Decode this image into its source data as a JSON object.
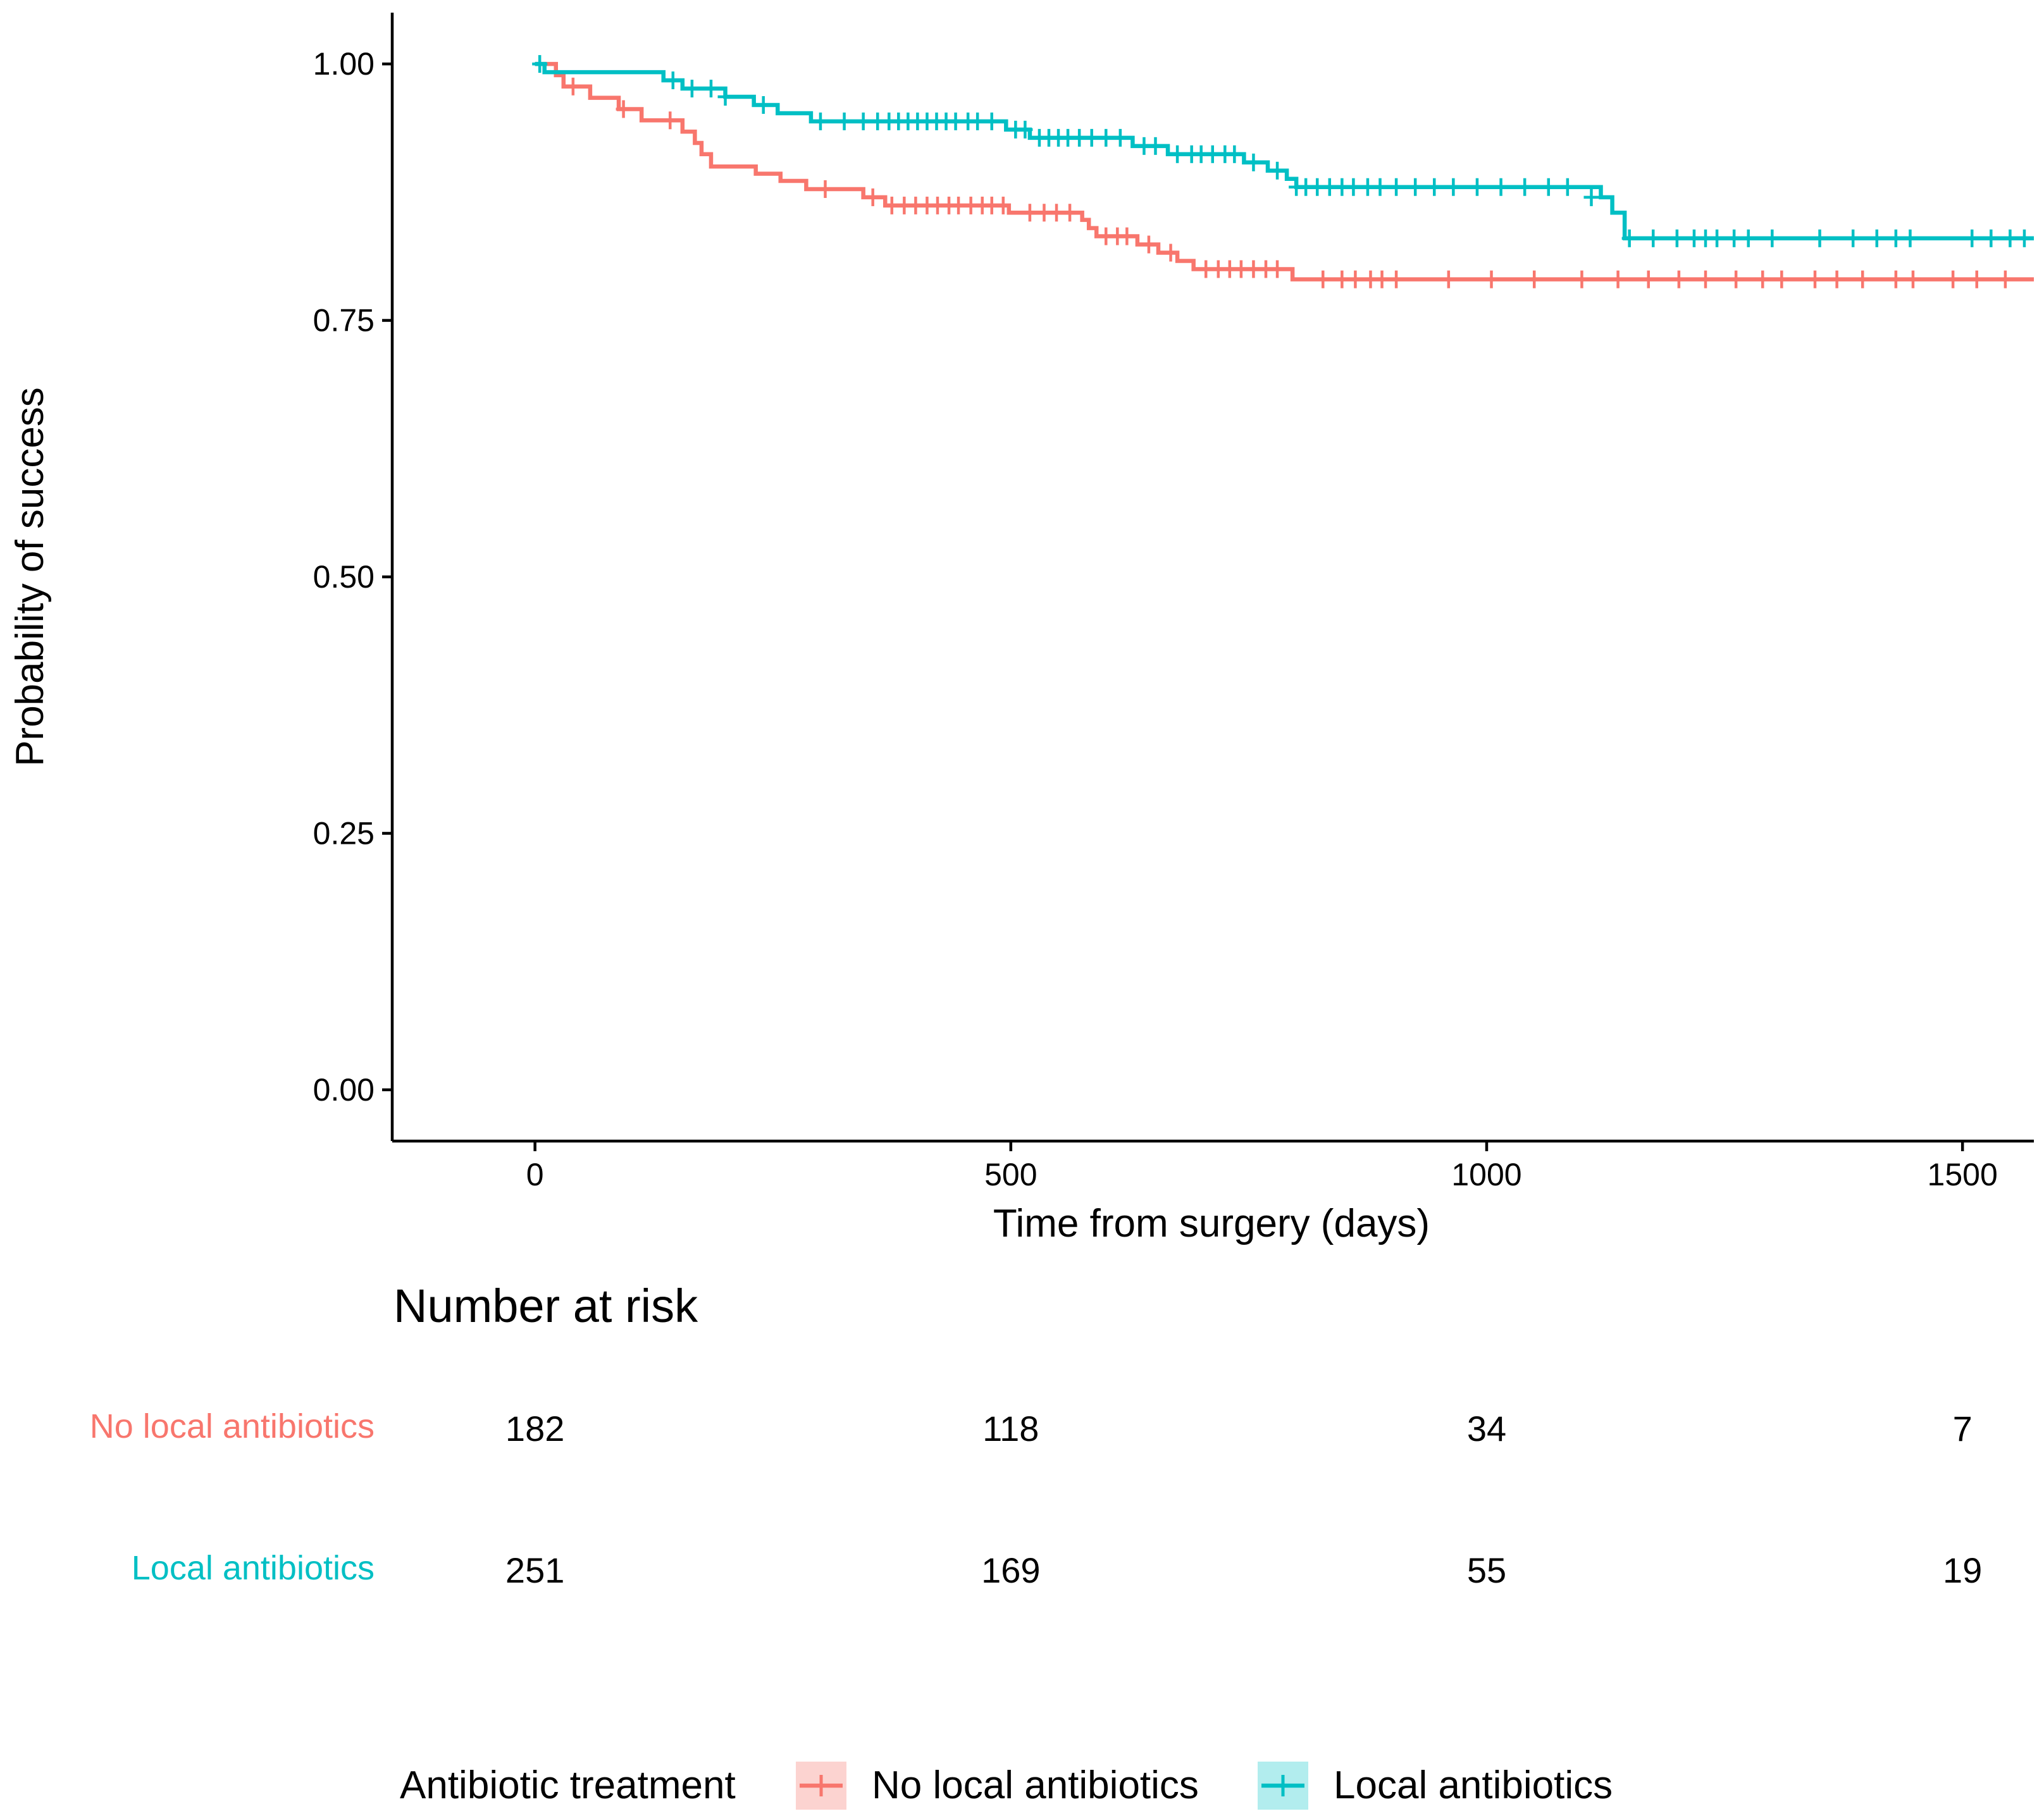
{
  "chart_data": {
    "type": "line",
    "subtype": "kaplan-meier",
    "xlabel": "Time from surgery (days)",
    "ylabel": "Probability of success",
    "xlim": [
      -150,
      1575
    ],
    "ylim": [
      -0.05,
      1.05
    ],
    "x_ticks": [
      0,
      500,
      1000,
      1500
    ],
    "y_ticks": [
      0.0,
      0.25,
      0.5,
      0.75,
      1.0
    ],
    "y_tick_labels": [
      "0.00",
      "0.25",
      "0.50",
      "0.75",
      "1.00"
    ],
    "grid": false,
    "series": [
      {
        "name": "No local antibiotics",
        "color": "#F8766D",
        "steps": [
          [
            0,
            1.0
          ],
          [
            22,
            0.989
          ],
          [
            30,
            0.978
          ],
          [
            58,
            0.967
          ],
          [
            88,
            0.956
          ],
          [
            112,
            0.945
          ],
          [
            155,
            0.934
          ],
          [
            168,
            0.923
          ],
          [
            175,
            0.912
          ],
          [
            185,
            0.9
          ],
          [
            232,
            0.893
          ],
          [
            258,
            0.886
          ],
          [
            285,
            0.878
          ],
          [
            345,
            0.87
          ],
          [
            368,
            0.862
          ],
          [
            498,
            0.855
          ],
          [
            575,
            0.848
          ],
          [
            582,
            0.84
          ],
          [
            590,
            0.832
          ],
          [
            633,
            0.824
          ],
          [
            655,
            0.816
          ],
          [
            675,
            0.808
          ],
          [
            692,
            0.8
          ],
          [
            796,
            0.79
          ],
          [
            1575,
            0.79
          ]
        ],
        "censored": [
          [
            40,
            0.978
          ],
          [
            93,
            0.956
          ],
          [
            142,
            0.945
          ],
          [
            305,
            0.878
          ],
          [
            355,
            0.87
          ],
          [
            375,
            0.862
          ],
          [
            388,
            0.862
          ],
          [
            400,
            0.862
          ],
          [
            412,
            0.862
          ],
          [
            423,
            0.862
          ],
          [
            435,
            0.862
          ],
          [
            445,
            0.862
          ],
          [
            458,
            0.862
          ],
          [
            470,
            0.862
          ],
          [
            480,
            0.862
          ],
          [
            492,
            0.862
          ],
          [
            520,
            0.855
          ],
          [
            535,
            0.855
          ],
          [
            548,
            0.855
          ],
          [
            562,
            0.855
          ],
          [
            600,
            0.832
          ],
          [
            612,
            0.832
          ],
          [
            622,
            0.832
          ],
          [
            645,
            0.824
          ],
          [
            668,
            0.816
          ],
          [
            705,
            0.8
          ],
          [
            718,
            0.8
          ],
          [
            730,
            0.8
          ],
          [
            742,
            0.8
          ],
          [
            755,
            0.8
          ],
          [
            768,
            0.8
          ],
          [
            780,
            0.8
          ],
          [
            828,
            0.79
          ],
          [
            848,
            0.79
          ],
          [
            862,
            0.79
          ],
          [
            878,
            0.79
          ],
          [
            890,
            0.79
          ],
          [
            905,
            0.79
          ],
          [
            960,
            0.79
          ],
          [
            1005,
            0.79
          ],
          [
            1050,
            0.79
          ],
          [
            1100,
            0.79
          ],
          [
            1138,
            0.79
          ],
          [
            1170,
            0.79
          ],
          [
            1202,
            0.79
          ],
          [
            1230,
            0.79
          ],
          [
            1262,
            0.79
          ],
          [
            1290,
            0.79
          ],
          [
            1310,
            0.79
          ],
          [
            1345,
            0.79
          ],
          [
            1368,
            0.79
          ],
          [
            1395,
            0.79
          ],
          [
            1430,
            0.79
          ],
          [
            1448,
            0.79
          ],
          [
            1490,
            0.79
          ],
          [
            1515,
            0.79
          ],
          [
            1545,
            0.79
          ]
        ]
      },
      {
        "name": "Local antibiotics",
        "color": "#00BFC4",
        "steps": [
          [
            0,
            1.0
          ],
          [
            10,
            0.992
          ],
          [
            135,
            0.984
          ],
          [
            155,
            0.976
          ],
          [
            200,
            0.968
          ],
          [
            230,
            0.96
          ],
          [
            255,
            0.952
          ],
          [
            290,
            0.944
          ],
          [
            495,
            0.936
          ],
          [
            520,
            0.928
          ],
          [
            628,
            0.92
          ],
          [
            665,
            0.912
          ],
          [
            745,
            0.904
          ],
          [
            770,
            0.896
          ],
          [
            790,
            0.888
          ],
          [
            800,
            0.88
          ],
          [
            1120,
            0.87
          ],
          [
            1132,
            0.855
          ],
          [
            1145,
            0.83
          ],
          [
            1575,
            0.83
          ]
        ],
        "censored": [
          [
            5,
            1.0
          ],
          [
            145,
            0.984
          ],
          [
            165,
            0.976
          ],
          [
            185,
            0.976
          ],
          [
            200,
            0.968
          ],
          [
            240,
            0.96
          ],
          [
            300,
            0.944
          ],
          [
            325,
            0.944
          ],
          [
            345,
            0.944
          ],
          [
            360,
            0.944
          ],
          [
            372,
            0.944
          ],
          [
            382,
            0.944
          ],
          [
            392,
            0.944
          ],
          [
            402,
            0.944
          ],
          [
            412,
            0.944
          ],
          [
            422,
            0.944
          ],
          [
            432,
            0.944
          ],
          [
            442,
            0.944
          ],
          [
            455,
            0.944
          ],
          [
            465,
            0.944
          ],
          [
            480,
            0.944
          ],
          [
            505,
            0.936
          ],
          [
            515,
            0.936
          ],
          [
            530,
            0.928
          ],
          [
            540,
            0.928
          ],
          [
            550,
            0.928
          ],
          [
            560,
            0.928
          ],
          [
            572,
            0.928
          ],
          [
            585,
            0.928
          ],
          [
            600,
            0.928
          ],
          [
            615,
            0.928
          ],
          [
            640,
            0.92
          ],
          [
            652,
            0.92
          ],
          [
            675,
            0.912
          ],
          [
            690,
            0.912
          ],
          [
            700,
            0.912
          ],
          [
            712,
            0.912
          ],
          [
            725,
            0.912
          ],
          [
            735,
            0.912
          ],
          [
            755,
            0.904
          ],
          [
            780,
            0.896
          ],
          [
            800,
            0.88
          ],
          [
            810,
            0.88
          ],
          [
            822,
            0.88
          ],
          [
            835,
            0.88
          ],
          [
            848,
            0.88
          ],
          [
            860,
            0.88
          ],
          [
            875,
            0.88
          ],
          [
            888,
            0.88
          ],
          [
            905,
            0.88
          ],
          [
            925,
            0.88
          ],
          [
            945,
            0.88
          ],
          [
            965,
            0.88
          ],
          [
            990,
            0.88
          ],
          [
            1015,
            0.88
          ],
          [
            1040,
            0.88
          ],
          [
            1065,
            0.88
          ],
          [
            1085,
            0.88
          ],
          [
            1110,
            0.87
          ],
          [
            1150,
            0.83
          ],
          [
            1175,
            0.83
          ],
          [
            1200,
            0.83
          ],
          [
            1218,
            0.83
          ],
          [
            1230,
            0.83
          ],
          [
            1242,
            0.83
          ],
          [
            1260,
            0.83
          ],
          [
            1275,
            0.83
          ],
          [
            1300,
            0.83
          ],
          [
            1350,
            0.83
          ],
          [
            1385,
            0.83
          ],
          [
            1410,
            0.83
          ],
          [
            1430,
            0.83
          ],
          [
            1445,
            0.83
          ],
          [
            1510,
            0.83
          ],
          [
            1530,
            0.83
          ],
          [
            1550,
            0.83
          ],
          [
            1565,
            0.83
          ]
        ]
      }
    ],
    "risk_table": {
      "title": "Number at risk",
      "times": [
        0,
        500,
        1000,
        1500
      ],
      "rows": [
        {
          "name": "No local antibiotics",
          "color": "#F8766D",
          "values": [
            "182",
            "118",
            "34",
            "7"
          ]
        },
        {
          "name": "Local antibiotics",
          "color": "#00BFC4",
          "values": [
            "251",
            "169",
            "55",
            "19"
          ]
        }
      ]
    },
    "legend": {
      "title": "Antibiotic treatment",
      "position": "bottom",
      "entries": [
        {
          "label": "No local antibiotics",
          "color": "#F8766D",
          "fill": "#FCD3D0"
        },
        {
          "label": "Local antibiotics",
          "color": "#00BFC4",
          "fill": "#B2EDEE"
        }
      ]
    }
  }
}
